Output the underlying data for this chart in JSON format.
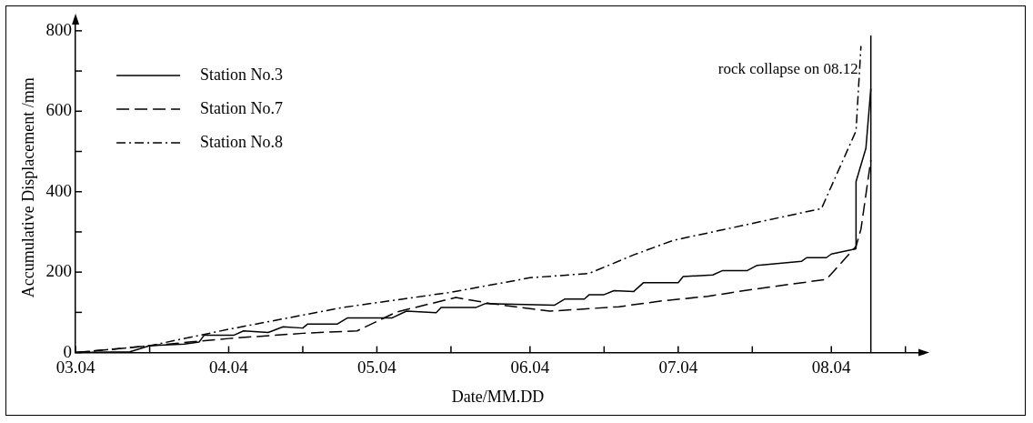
{
  "chart_data": {
    "type": "line",
    "xlabel": "Date/MM.DD",
    "ylabel": "Accumulative Displacement /mm",
    "xlim": [
      "--03-04",
      "--08-22"
    ],
    "xticks": [
      {
        "value": "--03-04",
        "label": "03.04"
      },
      {
        "value": "--03-19",
        "label": null
      },
      {
        "value": "--04-04",
        "label": "04.04"
      },
      {
        "value": "--04-19",
        "label": null
      },
      {
        "value": "--05-04",
        "label": "05.04"
      },
      {
        "value": "--05-19",
        "label": null
      },
      {
        "value": "--06-04",
        "label": "06.04"
      },
      {
        "value": "--06-19",
        "label": null
      },
      {
        "value": "--07-04",
        "label": "07.04"
      },
      {
        "value": "--07-19",
        "label": null
      },
      {
        "value": "--08-04",
        "label": "08.04"
      },
      {
        "value": "--08-19",
        "label": null
      }
    ],
    "ylim": [
      0,
      820
    ],
    "yticks": [
      0,
      {
        "value": 100,
        "label": null
      },
      200,
      {
        "value": 300,
        "label": null
      },
      400,
      {
        "value": 500,
        "label": null
      },
      600,
      {
        "value": 700,
        "label": null
      },
      800
    ],
    "grid": false,
    "legend": "top left",
    "marker": "none",
    "ref_lines": [
      {
        "axis": "x",
        "value": "--08-12",
        "label": "rock collapse on 08.12",
        "color": "#000000",
        "line_style": "solid"
      }
    ],
    "series": [
      {
        "name": "Station No.3",
        "color": "#000000",
        "line_style": "solid",
        "x": [
          "--03-04",
          "--03-15",
          "--03-19",
          "--03-26",
          "--03-29",
          "--03-30",
          "--04-05",
          "--04-07",
          "--04-12",
          "--04-15",
          "--04-19",
          "--04-20",
          "--04-26",
          "--04-28",
          "--05-07",
          "--05-10",
          "--05-16",
          "--05-17",
          "--05-24",
          "--05-26",
          "--06-09",
          "--06-11",
          "--06-15",
          "--06-16",
          "--06-19",
          "--06-21",
          "--06-25",
          "--06-27",
          "--07-04",
          "--07-05",
          "--07-11",
          "--07-13",
          "--07-18",
          "--07-20",
          "--07-29",
          "--07-30",
          "--08-03",
          "--08-04",
          "--08-09",
          "--08-09",
          "--08-11",
          "--08-12"
        ],
        "values": [
          0,
          2,
          17,
          21,
          26,
          43,
          43,
          54,
          50,
          64,
          61,
          71,
          71,
          86,
          86,
          103,
          99,
          112,
          112,
          122,
          118,
          133,
          133,
          144,
          144,
          154,
          152,
          174,
          174,
          189,
          193,
          204,
          204,
          217,
          227,
          236,
          236,
          245,
          258,
          425,
          508,
          657
        ]
      },
      {
        "name": "Station No.7",
        "color": "#000000",
        "line_style": "dashed",
        "x": [
          "--03-04",
          "--03-19",
          "--04-04",
          "--04-19",
          "--04-30",
          "--05-08",
          "--05-20",
          "--05-27",
          "--06-08",
          "--06-22",
          "--07-01",
          "--07-10",
          "--07-19",
          "--08-03",
          "--08-09",
          "--08-10",
          "--08-12"
        ],
        "values": [
          0,
          17,
          35,
          48,
          54,
          101,
          137,
          122,
          103,
          114,
          129,
          140,
          157,
          182,
          264,
          307,
          479
        ]
      },
      {
        "name": "Station No.8",
        "color": "#000000",
        "line_style": "dashdot",
        "x": [
          "--03-04",
          "--03-19",
          "--04-04",
          "--04-27",
          "--05-19",
          "--06-04",
          "--06-16",
          "--06-25",
          "--07-03",
          "--08-02",
          "--08-09",
          "--08-10"
        ],
        "values": [
          0,
          17,
          58,
          112,
          150,
          186,
          197,
          243,
          279,
          358,
          551,
          762
        ]
      }
    ]
  }
}
